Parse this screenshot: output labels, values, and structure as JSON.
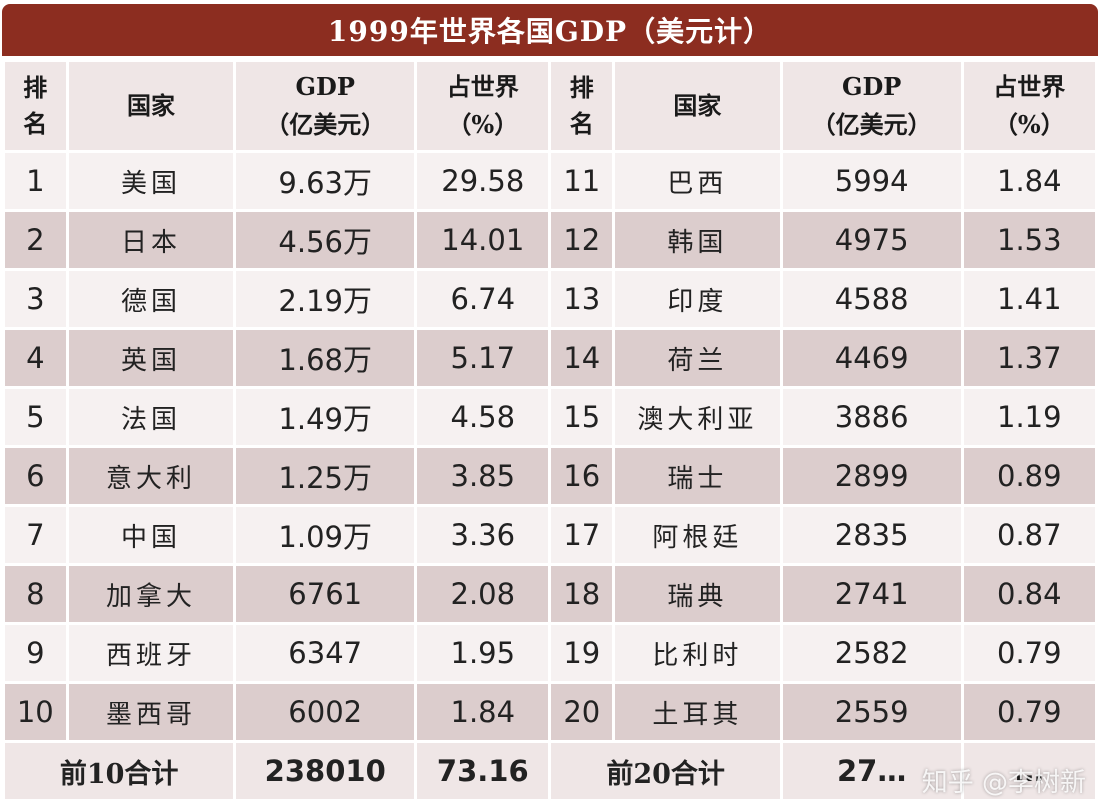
{
  "title": "1999年世界各国GDP（美元计）",
  "headers": {
    "rank": "排\n名",
    "country": "国家",
    "gdp": "GDP\n（亿美元）",
    "share": "占世界\n（%）"
  },
  "rows": [
    {
      "left": {
        "rank": "1",
        "country": "美国",
        "gdp": "9.63万",
        "share": "29.58"
      },
      "right": {
        "rank": "11",
        "country": "巴西",
        "gdp": "5994",
        "share": "1.84"
      }
    },
    {
      "left": {
        "rank": "2",
        "country": "日本",
        "gdp": "4.56万",
        "share": "14.01"
      },
      "right": {
        "rank": "12",
        "country": "韩国",
        "gdp": "4975",
        "share": "1.53"
      }
    },
    {
      "left": {
        "rank": "3",
        "country": "德国",
        "gdp": "2.19万",
        "share": "6.74"
      },
      "right": {
        "rank": "13",
        "country": "印度",
        "gdp": "4588",
        "share": "1.41"
      }
    },
    {
      "left": {
        "rank": "4",
        "country": "英国",
        "gdp": "1.68万",
        "share": "5.17"
      },
      "right": {
        "rank": "14",
        "country": "荷兰",
        "gdp": "4469",
        "share": "1.37"
      }
    },
    {
      "left": {
        "rank": "5",
        "country": "法国",
        "gdp": "1.49万",
        "share": "4.58"
      },
      "right": {
        "rank": "15",
        "country": "澳大利亚",
        "gdp": "3886",
        "share": "1.19"
      }
    },
    {
      "left": {
        "rank": "6",
        "country": "意大利",
        "gdp": "1.25万",
        "share": "3.85"
      },
      "right": {
        "rank": "16",
        "country": "瑞士",
        "gdp": "2899",
        "share": "0.89"
      }
    },
    {
      "left": {
        "rank": "7",
        "country": "中国",
        "gdp": "1.09万",
        "share": "3.36"
      },
      "right": {
        "rank": "17",
        "country": "阿根廷",
        "gdp": "2835",
        "share": "0.87"
      }
    },
    {
      "left": {
        "rank": "8",
        "country": "加拿大",
        "gdp": "6761",
        "share": "2.08"
      },
      "right": {
        "rank": "18",
        "country": "瑞典",
        "gdp": "2741",
        "share": "0.84"
      }
    },
    {
      "left": {
        "rank": "9",
        "country": "西班牙",
        "gdp": "6347",
        "share": "1.95"
      },
      "right": {
        "rank": "19",
        "country": "比利时",
        "gdp": "2582",
        "share": "0.79"
      }
    },
    {
      "left": {
        "rank": "10",
        "country": "墨西哥",
        "gdp": "6002",
        "share": "1.84"
      },
      "right": {
        "rank": "20",
        "country": "土耳其",
        "gdp": "2559",
        "share": "0.79"
      }
    }
  ],
  "totals": {
    "left": {
      "label": "前10合计",
      "gdp": "238010",
      "share": "73.16"
    },
    "right": {
      "label": "前20合计",
      "gdp": "27…",
      "share": "…"
    }
  },
  "watermark": "知乎 @李树新",
  "colors": {
    "title_bg": "#8c2d20",
    "header_bg": "#efe6e6",
    "row_light": "#f6f1f1",
    "row_dark": "#dccdcd",
    "total_bg": "#efe6e6"
  }
}
